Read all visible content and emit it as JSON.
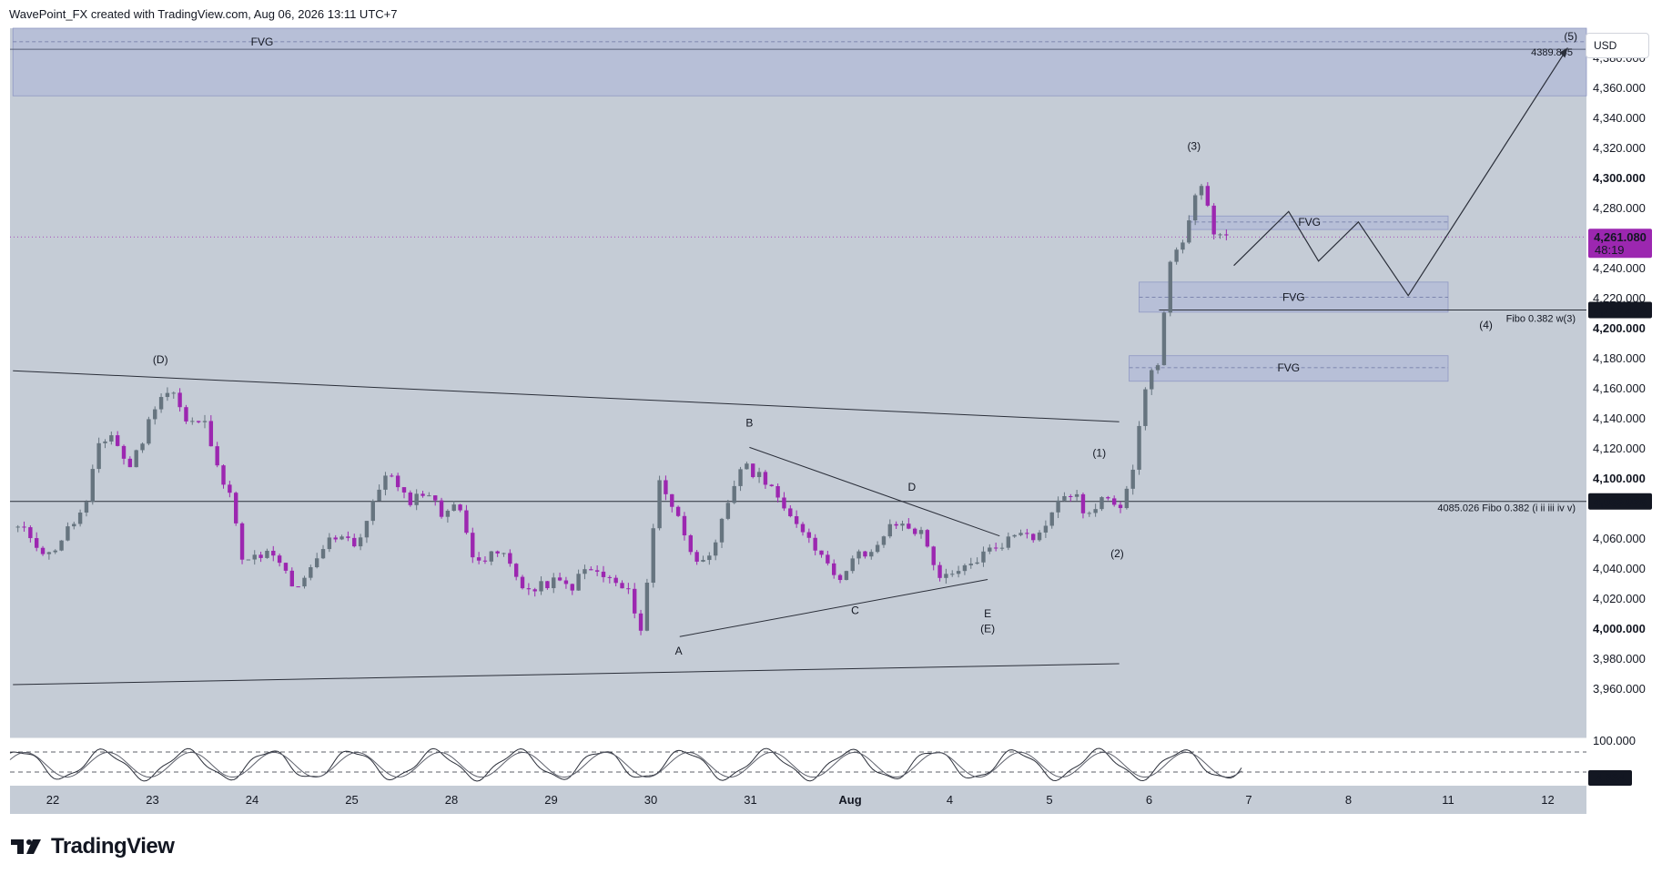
{
  "header": {
    "caption": "WavePoint_FX created with TradingView.com, Aug 06, 2026 13:11 UTC+7"
  },
  "currency_button": "USD",
  "footer": {
    "brand": "TradingView"
  },
  "colors": {
    "bull": "#66747f",
    "bear": "#9c27b0",
    "price_tag": "#9c27b0",
    "fvg_fill": "#b4bcd7",
    "bg": "#c5ccd6",
    "line": "#2a2e39"
  },
  "chart_data": {
    "type": "candlestick",
    "price_axis": {
      "ylim": [
        3945,
        4400
      ],
      "ticks": [
        "4,380.000",
        "4,360.000",
        "4,340.000",
        "4,320.000",
        "4,300.000",
        "4,280.000",
        "4,240.000",
        "4,220.000",
        "4,200.000",
        "4,180.000",
        "4,160.000",
        "4,140.000",
        "4,120.000",
        "4,100.000",
        "4,060.000",
        "4,040.000",
        "4,020.000",
        "4,000.000",
        "3,980.000",
        "3,960.000"
      ],
      "tick_values": [
        4380,
        4360,
        4340,
        4320,
        4300,
        4280,
        4240,
        4220,
        4200,
        4180,
        4160,
        4140,
        4120,
        4100,
        4060,
        4040,
        4020,
        4000,
        3980,
        3960
      ]
    },
    "time_axis": {
      "labels": [
        "22",
        "23",
        "24",
        "25",
        "28",
        "29",
        "30",
        "31",
        "Aug",
        "4",
        "5",
        "6",
        "7",
        "8",
        "11",
        "12"
      ],
      "index": [
        0,
        1,
        2,
        3,
        4,
        5,
        6,
        7,
        8,
        9,
        10,
        11,
        12,
        13,
        14,
        15
      ]
    },
    "current_price": {
      "value": "4,261.080",
      "countdown": "48:19",
      "level": 4261.08
    },
    "levels": [
      {
        "value": "4,212.402",
        "level": 4212.402,
        "label": "Fibo 0.382 w(3)"
      },
      {
        "value": "4,085.026",
        "level": 4085.026,
        "label": "4085.026 Fibo 0.382 (i ii iii iv v)"
      },
      {
        "value": "4389.845",
        "level": 4389.845,
        "label": ""
      }
    ],
    "fvg_zones": [
      {
        "label": "FVG",
        "from_day": -0.4,
        "to_day": 15.4,
        "top": 4400,
        "bottom": 4355,
        "mid": 4391
      },
      {
        "label": "FVG",
        "from_day": 11.4,
        "to_day": 14.0,
        "top": 4275,
        "bottom": 4266,
        "mid": 4271
      },
      {
        "label": "FVG",
        "from_day": 10.9,
        "to_day": 14.0,
        "top": 4231,
        "bottom": 4211,
        "mid": 4221
      },
      {
        "label": "FVG",
        "from_day": 10.8,
        "to_day": 14.0,
        "top": 4182,
        "bottom": 4165,
        "mid": 4174
      }
    ],
    "wave_labels": [
      {
        "text": "(D)",
        "day": 1.08,
        "price": 4177
      },
      {
        "text": "A",
        "day": 6.28,
        "price": 3983
      },
      {
        "text": "B",
        "day": 6.99,
        "price": 4135
      },
      {
        "text": "C",
        "day": 8.05,
        "price": 4010
      },
      {
        "text": "D",
        "day": 8.62,
        "price": 4092
      },
      {
        "text": "E",
        "day": 9.38,
        "price": 4008
      },
      {
        "text": "(E)",
        "day": 9.38,
        "price": 3998
      },
      {
        "text": "(1)",
        "day": 10.5,
        "price": 4115
      },
      {
        "text": "(2)",
        "day": 10.68,
        "price": 4048
      },
      {
        "text": "(3)",
        "day": 11.45,
        "price": 4319
      },
      {
        "text": "(4)",
        "day": 14.38,
        "price": 4200
      },
      {
        "text": "(5)",
        "day": 15.23,
        "price": 4392
      }
    ],
    "candle_anchors": [
      [
        -0.35,
        4067
      ],
      [
        -0.22,
        4062
      ],
      [
        -0.05,
        4048
      ],
      [
        0.15,
        4066
      ],
      [
        0.35,
        4083
      ],
      [
        0.45,
        4123
      ],
      [
        0.6,
        4130
      ],
      [
        0.75,
        4107
      ],
      [
        0.85,
        4118
      ],
      [
        0.95,
        4135
      ],
      [
        1.05,
        4155
      ],
      [
        1.2,
        4159
      ],
      [
        1.35,
        4135
      ],
      [
        1.5,
        4140
      ],
      [
        1.62,
        4120
      ],
      [
        1.72,
        4095
      ],
      [
        1.82,
        4082
      ],
      [
        1.9,
        4044
      ],
      [
        2.0,
        4046
      ],
      [
        2.15,
        4050
      ],
      [
        2.3,
        4042
      ],
      [
        2.45,
        4024
      ],
      [
        2.6,
        4040
      ],
      [
        2.75,
        4058
      ],
      [
        2.9,
        4064
      ],
      [
        3.05,
        4056
      ],
      [
        3.2,
        4080
      ],
      [
        3.35,
        4107
      ],
      [
        3.5,
        4088
      ],
      [
        3.6,
        4086
      ],
      [
        3.75,
        4093
      ],
      [
        3.9,
        4076
      ],
      [
        4.0,
        4086
      ],
      [
        4.1,
        4075
      ],
      [
        4.2,
        4052
      ],
      [
        4.35,
        4046
      ],
      [
        4.5,
        4052
      ],
      [
        4.65,
        4035
      ],
      [
        4.8,
        4024
      ],
      [
        5.0,
        4032
      ],
      [
        5.2,
        4028
      ],
      [
        5.35,
        4040
      ],
      [
        5.5,
        4036
      ],
      [
        5.65,
        4030
      ],
      [
        5.8,
        4022
      ],
      [
        5.9,
        4000
      ],
      [
        5.98,
        4038
      ],
      [
        6.08,
        4102
      ],
      [
        6.2,
        4084
      ],
      [
        6.3,
        4070
      ],
      [
        6.42,
        4052
      ],
      [
        6.55,
        4040
      ],
      [
        6.65,
        4055
      ],
      [
        6.75,
        4080
      ],
      [
        6.9,
        4108
      ],
      [
        7.05,
        4104
      ],
      [
        7.2,
        4098
      ],
      [
        7.35,
        4075
      ],
      [
        7.5,
        4070
      ],
      [
        7.65,
        4054
      ],
      [
        7.75,
        4052
      ],
      [
        7.85,
        4030
      ],
      [
        7.98,
        4044
      ],
      [
        8.1,
        4050
      ],
      [
        8.18,
        4045
      ],
      [
        8.3,
        4060
      ],
      [
        8.45,
        4070
      ],
      [
        8.6,
        4068
      ],
      [
        8.72,
        4063
      ],
      [
        8.82,
        4048
      ],
      [
        8.9,
        4035
      ],
      [
        9.0,
        4033
      ],
      [
        9.15,
        4040
      ],
      [
        9.3,
        4048
      ],
      [
        9.45,
        4055
      ],
      [
        9.6,
        4060
      ],
      [
        9.75,
        4068
      ],
      [
        9.88,
        4060
      ],
      [
        9.95,
        4070
      ],
      [
        10.05,
        4080
      ],
      [
        10.18,
        4092
      ],
      [
        10.28,
        4086
      ],
      [
        10.38,
        4075
      ],
      [
        10.48,
        4080
      ],
      [
        10.58,
        4090
      ],
      [
        10.7,
        4082
      ],
      [
        10.8,
        4100
      ],
      [
        10.88,
        4120
      ],
      [
        10.95,
        4160
      ],
      [
        11.02,
        4170
      ],
      [
        11.08,
        4175
      ],
      [
        11.15,
        4210
      ],
      [
        11.22,
        4248
      ],
      [
        11.3,
        4250
      ],
      [
        11.38,
        4262
      ],
      [
        11.45,
        4284
      ],
      [
        11.52,
        4300
      ],
      [
        11.58,
        4285
      ],
      [
        11.64,
        4268
      ],
      [
        11.7,
        4258
      ],
      [
        11.78,
        4265
      ]
    ],
    "oscillator": {
      "value": "4.634",
      "ticks": [
        "100.000"
      ]
    }
  }
}
